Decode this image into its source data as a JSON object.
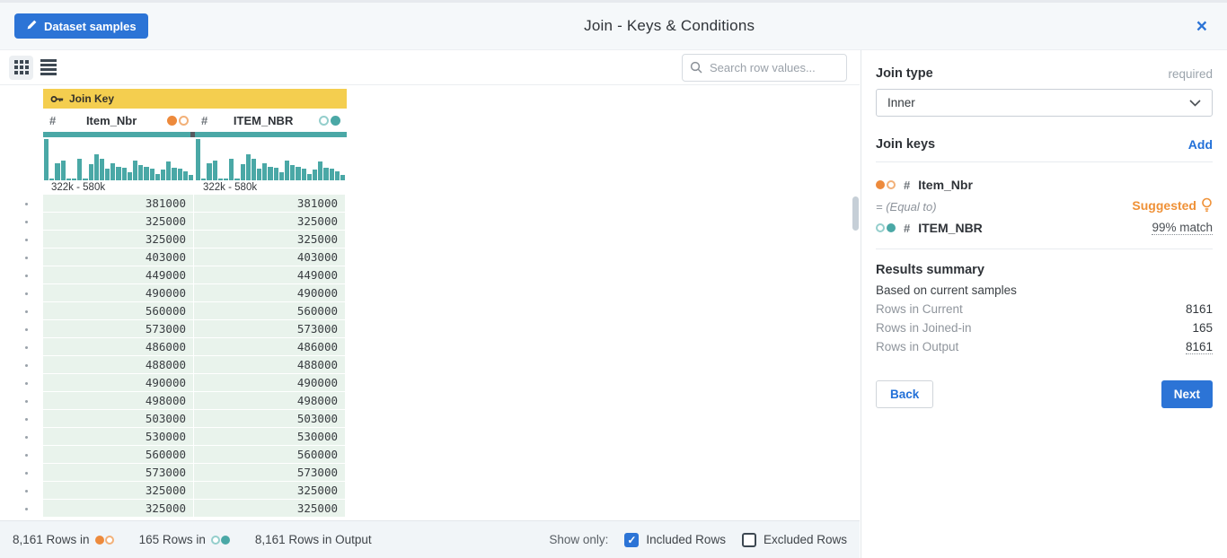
{
  "header": {
    "dataset_samples_button": "Dataset samples",
    "title": "Join - Keys & Conditions",
    "close_icon": "×"
  },
  "toolbar": {
    "search_placeholder": "Search row values..."
  },
  "table": {
    "join_key_banner": "Join Key",
    "columns": [
      {
        "name": "Item_Nbr",
        "type_icon": "#",
        "dataset_dots": "orange-left",
        "range": "322k - 580k"
      },
      {
        "name": "ITEM_NBR",
        "type_icon": "#",
        "dataset_dots": "teal-right",
        "range": "322k - 580k"
      }
    ],
    "histogram": [
      1.0,
      0.04,
      0.42,
      0.47,
      0.04,
      0.04,
      0.52,
      0.04,
      0.4,
      0.62,
      0.52,
      0.28,
      0.42,
      0.33,
      0.3,
      0.2,
      0.48,
      0.38,
      0.33,
      0.28,
      0.15,
      0.25,
      0.45,
      0.3,
      0.28,
      0.22,
      0.12
    ],
    "rows": [
      [
        "381000",
        "381000"
      ],
      [
        "325000",
        "325000"
      ],
      [
        "325000",
        "325000"
      ],
      [
        "403000",
        "403000"
      ],
      [
        "449000",
        "449000"
      ],
      [
        "490000",
        "490000"
      ],
      [
        "560000",
        "560000"
      ],
      [
        "573000",
        "573000"
      ],
      [
        "486000",
        "486000"
      ],
      [
        "488000",
        "488000"
      ],
      [
        "490000",
        "490000"
      ],
      [
        "498000",
        "498000"
      ],
      [
        "503000",
        "503000"
      ],
      [
        "530000",
        "530000"
      ],
      [
        "560000",
        "560000"
      ],
      [
        "573000",
        "573000"
      ],
      [
        "325000",
        "325000"
      ],
      [
        "325000",
        "325000"
      ]
    ]
  },
  "right_panel": {
    "join_type_label": "Join type",
    "required_label": "required",
    "join_type_value": "Inner",
    "join_keys_label": "Join keys",
    "add_label": "Add",
    "key_left": "Item_Nbr",
    "key_left_type_icon": "#",
    "operator": "= (Equal to)",
    "key_right": "ITEM_NBR",
    "key_right_type_icon": "#",
    "suggested_label": "Suggested",
    "match_label": "99% match",
    "results": {
      "title": "Results summary",
      "subtitle": "Based on current samples",
      "rows": [
        {
          "label": "Rows in Current",
          "value": "8161",
          "underlined": false
        },
        {
          "label": "Rows in Joined-in",
          "value": "165",
          "underlined": false
        },
        {
          "label": "Rows in Output",
          "value": "8161",
          "underlined": true
        }
      ]
    },
    "back_button": "Back",
    "next_button": "Next"
  },
  "footer": {
    "stats": [
      {
        "text": "8,161 Rows in",
        "dots": "orange"
      },
      {
        "text": "165 Rows in",
        "dots": "teal"
      },
      {
        "text": "8,161 Rows in Output",
        "dots": null
      }
    ],
    "show_only_label": "Show only:",
    "included_label": "Included Rows",
    "excluded_label": "Excluded Rows",
    "included_checked": true,
    "excluded_checked": false
  },
  "colors": {
    "accent_blue": "#2c74d6",
    "teal": "#4aa8a6",
    "orange": "#ed8a3c",
    "suggested_orange": "#ef9137",
    "banner_yellow": "#f4ce4f",
    "row_green": "#e9f3ec"
  }
}
